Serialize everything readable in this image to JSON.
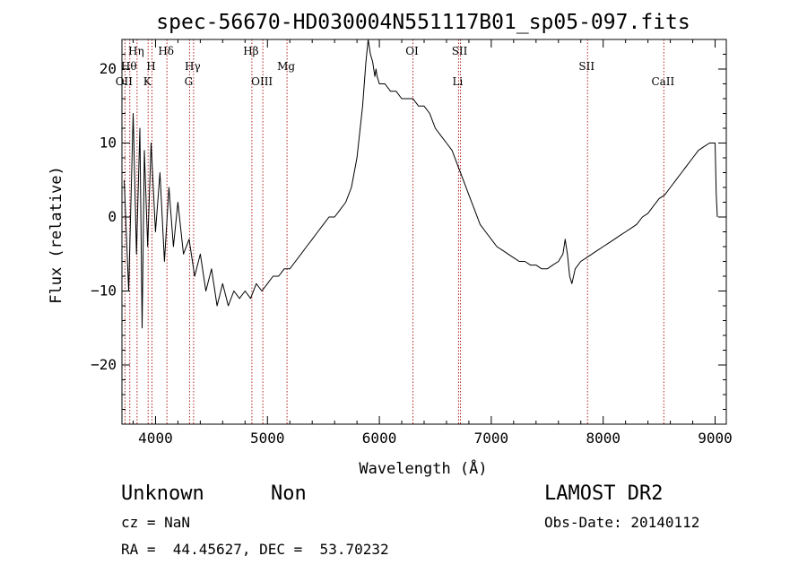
{
  "chart_data": {
    "type": "line",
    "title": "spec-56670-HD030004N551117B01_sp05-097.fits",
    "xlabel": "Wavelength (Å)",
    "ylabel": "Flux (relative)",
    "xlim": [
      3700,
      9100
    ],
    "ylim": [
      -28,
      24
    ],
    "xticks": [
      4000,
      5000,
      6000,
      7000,
      8000,
      9000
    ],
    "yticks": [
      -20,
      -10,
      0,
      10,
      20
    ],
    "grid": false,
    "series": [
      {
        "x": [
          3720,
          3760,
          3800,
          3830,
          3860,
          3880,
          3900,
          3930,
          3960,
          4000,
          4040,
          4080,
          4120,
          4160,
          4200,
          4250,
          4300,
          4350,
          4400,
          4450,
          4500,
          4550,
          4600,
          4650,
          4700,
          4750,
          4800,
          4850,
          4900,
          4950,
          5000,
          5050,
          5100,
          5150,
          5200,
          5250,
          5300,
          5350,
          5400,
          5450,
          5500,
          5550,
          5600,
          5650,
          5700,
          5750,
          5800,
          5850,
          5880,
          5900,
          5920,
          5940,
          5950,
          5960,
          5970,
          5980,
          6000,
          6050,
          6100,
          6150,
          6200,
          6250,
          6300,
          6350,
          6400,
          6450,
          6500,
          6550,
          6600,
          6650,
          6700,
          6750,
          6800,
          6850,
          6900,
          6950,
          7000,
          7050,
          7100,
          7150,
          7200,
          7250,
          7300,
          7350,
          7400,
          7450,
          7500,
          7550,
          7600,
          7640,
          7660,
          7680,
          7700,
          7720,
          7750,
          7800,
          7850,
          7900,
          7950,
          8000,
          8050,
          8100,
          8150,
          8200,
          8250,
          8300,
          8350,
          8400,
          8450,
          8500,
          8550,
          8600,
          8650,
          8700,
          8750,
          8800,
          8850,
          8900,
          8950,
          9000,
          9010,
          9020
        ],
        "y": [
          5,
          -10,
          14,
          -5,
          12,
          -15,
          9,
          -4,
          10,
          -2,
          6,
          -6,
          4,
          -4,
          2,
          -5,
          -3,
          -8,
          -5,
          -10,
          -7,
          -12,
          -9,
          -12,
          -10,
          -11,
          -10,
          -11,
          -9,
          -10,
          -9,
          -8,
          -8,
          -7,
          -7,
          -6,
          -5,
          -4,
          -3,
          -2,
          -1,
          0,
          0,
          1,
          2,
          4,
          8,
          15,
          21,
          24,
          22,
          21,
          20,
          19,
          20,
          19,
          18,
          18,
          17,
          17,
          16,
          16,
          16,
          15,
          15,
          14,
          12,
          11,
          10,
          9,
          7,
          5,
          3,
          1,
          -1,
          -2,
          -3,
          -4,
          -4.5,
          -5,
          -5.5,
          -6,
          -6,
          -6.5,
          -6.5,
          -7,
          -7,
          -6.5,
          -6,
          -5,
          -3,
          -5,
          -8,
          -9,
          -7,
          -6,
          -5.5,
          -5,
          -4.5,
          -4,
          -3.5,
          -3,
          -2.5,
          -2,
          -1.5,
          -1,
          0,
          0.5,
          1.5,
          2.5,
          3,
          4,
          5,
          6,
          7,
          8,
          9,
          9.5,
          10,
          10,
          3,
          0
        ]
      }
    ],
    "lines": [
      {
        "x": 3727,
        "label": "OII",
        "row": 3
      },
      {
        "x": 3770,
        "label": "Hθ",
        "row": 2
      },
      {
        "x": 3835,
        "label": "Hη",
        "row": 1
      },
      {
        "x": 3934,
        "label": "K",
        "row": 3
      },
      {
        "x": 3968,
        "label": "H",
        "row": 2
      },
      {
        "x": 4102,
        "label": "Hδ",
        "row": 1
      },
      {
        "x": 4304,
        "label": "G",
        "row": 3
      },
      {
        "x": 4340,
        "label": "Hγ",
        "row": 2
      },
      {
        "x": 4861,
        "label": "Hβ",
        "row": 1
      },
      {
        "x": 4959,
        "label": "OIII",
        "row": 3
      },
      {
        "x": 5175,
        "label": "Mg",
        "row": 2
      },
      {
        "x": 6300,
        "label": "OI",
        "row": 1
      },
      {
        "x": 6708,
        "label": "Li",
        "row": 3
      },
      {
        "x": 6725,
        "label": "SII",
        "row": 1
      },
      {
        "x": 7860,
        "label": "SII",
        "row": 2
      },
      {
        "x": 8542,
        "label": "CaII",
        "row": 3
      }
    ]
  },
  "info": {
    "object_class": "Unknown",
    "subclass": "Non",
    "survey": "LAMOST DR2",
    "redshift": "cz = NaN",
    "obs_date": "Obs-Date: 20140112",
    "coords": "RA =  44.45627, DEC =  53.70232"
  }
}
